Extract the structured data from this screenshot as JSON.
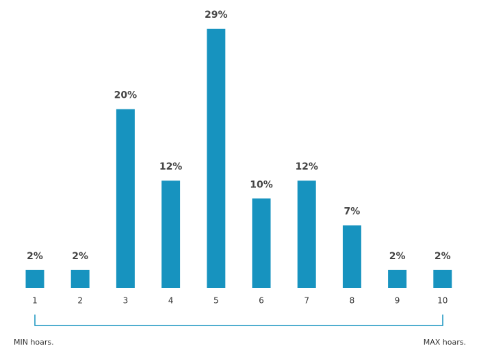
{
  "chart_data": {
    "type": "bar",
    "categories": [
      "1",
      "2",
      "3",
      "4",
      "5",
      "6",
      "7",
      "8",
      "9",
      "10"
    ],
    "values": [
      2,
      2,
      20,
      12,
      29,
      10,
      12,
      7,
      2,
      2
    ],
    "value_labels": [
      "2%",
      "2%",
      "20%",
      "12%",
      "29%",
      "10%",
      "12%",
      "7%",
      "2%",
      "2%"
    ],
    "color": "#1793bf",
    "annotations": [
      "MIN hoars.",
      "MAX hoars."
    ]
  }
}
